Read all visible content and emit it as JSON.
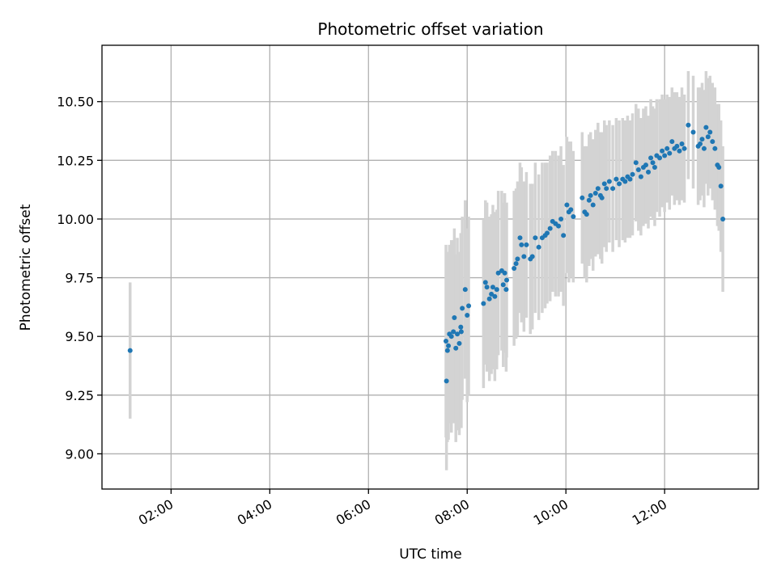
{
  "chart_data": {
    "type": "scatter",
    "title": "Photometric offset variation",
    "xlabel": "UTC time",
    "ylabel": "Photometric offset",
    "x_unit": "hours UTC",
    "xlim": [
      0.6,
      13.9
    ],
    "ylim": [
      8.85,
      10.74
    ],
    "x_ticks": [
      2,
      4,
      6,
      8,
      10,
      12
    ],
    "x_tick_labels": [
      "02:00",
      "04:00",
      "06:00",
      "08:00",
      "10:00",
      "12:00"
    ],
    "y_ticks": [
      9.0,
      9.25,
      9.5,
      9.75,
      10.0,
      10.25,
      10.5
    ],
    "y_tick_labels": [
      "9.00",
      "9.25",
      "9.50",
      "9.75",
      "10.00",
      "10.25",
      "10.50"
    ],
    "grid": true,
    "colors": {
      "point": "#1f77b4",
      "errorbar": "#d3d3d3",
      "grid": "#b0b0b0"
    },
    "series": [
      {
        "points": [
          [
            1.17,
            9.44,
            0.29
          ],
          [
            7.57,
            9.48,
            0.41
          ],
          [
            7.58,
            9.31,
            0.38
          ],
          [
            7.6,
            9.44,
            0.39
          ],
          [
            7.62,
            9.46,
            0.4
          ],
          [
            7.64,
            9.51,
            0.38
          ],
          [
            7.68,
            9.5,
            0.41
          ],
          [
            7.72,
            9.52,
            0.39
          ],
          [
            7.74,
            9.58,
            0.38
          ],
          [
            7.77,
            9.45,
            0.4
          ],
          [
            7.8,
            9.51,
            0.41
          ],
          [
            7.84,
            9.47,
            0.39
          ],
          [
            7.87,
            9.54,
            0.4
          ],
          [
            7.88,
            9.52,
            0.41
          ],
          [
            7.9,
            9.62,
            0.39
          ],
          [
            7.96,
            9.7,
            0.38
          ],
          [
            8.0,
            9.59,
            0.37
          ],
          [
            8.03,
            9.63,
            0.38
          ],
          [
            8.33,
            9.64,
            0.36
          ],
          [
            8.37,
            9.73,
            0.35
          ],
          [
            8.4,
            9.71,
            0.36
          ],
          [
            8.45,
            9.66,
            0.35
          ],
          [
            8.49,
            9.68,
            0.34
          ],
          [
            8.52,
            9.71,
            0.35
          ],
          [
            8.56,
            9.67,
            0.36
          ],
          [
            8.6,
            9.7,
            0.34
          ],
          [
            8.63,
            9.77,
            0.35
          ],
          [
            8.7,
            9.78,
            0.34
          ],
          [
            8.73,
            9.72,
            0.35
          ],
          [
            8.76,
            9.77,
            0.34
          ],
          [
            8.79,
            9.7,
            0.35
          ],
          [
            8.8,
            9.74,
            0.33
          ],
          [
            8.95,
            9.79,
            0.33
          ],
          [
            8.99,
            9.81,
            0.32
          ],
          [
            9.02,
            9.83,
            0.33
          ],
          [
            9.07,
            9.92,
            0.32
          ],
          [
            9.1,
            9.89,
            0.33
          ],
          [
            9.15,
            9.84,
            0.32
          ],
          [
            9.2,
            9.89,
            0.31
          ],
          [
            9.28,
            9.83,
            0.32
          ],
          [
            9.32,
            9.84,
            0.31
          ],
          [
            9.38,
            9.92,
            0.32
          ],
          [
            9.45,
            9.88,
            0.31
          ],
          [
            9.52,
            9.92,
            0.32
          ],
          [
            9.58,
            9.93,
            0.31
          ],
          [
            9.62,
            9.94,
            0.3
          ],
          [
            9.68,
            9.96,
            0.31
          ],
          [
            9.73,
            9.99,
            0.3
          ],
          [
            9.79,
            9.98,
            0.31
          ],
          [
            9.85,
            9.97,
            0.3
          ],
          [
            9.9,
            10.0,
            0.31
          ],
          [
            9.95,
            9.93,
            0.3
          ],
          [
            10.02,
            10.06,
            0.29
          ],
          [
            10.06,
            10.03,
            0.3
          ],
          [
            10.1,
            10.04,
            0.29
          ],
          [
            10.15,
            10.01,
            0.28
          ],
          [
            10.33,
            10.09,
            0.28
          ],
          [
            10.38,
            10.03,
            0.28
          ],
          [
            10.42,
            10.02,
            0.29
          ],
          [
            10.47,
            10.08,
            0.28
          ],
          [
            10.5,
            10.1,
            0.27
          ],
          [
            10.55,
            10.06,
            0.28
          ],
          [
            10.6,
            10.11,
            0.27
          ],
          [
            10.65,
            10.13,
            0.28
          ],
          [
            10.7,
            10.1,
            0.27
          ],
          [
            10.73,
            10.09,
            0.28
          ],
          [
            10.78,
            10.15,
            0.27
          ],
          [
            10.82,
            10.13,
            0.27
          ],
          [
            10.88,
            10.16,
            0.26
          ],
          [
            10.95,
            10.13,
            0.27
          ],
          [
            11.02,
            10.17,
            0.26
          ],
          [
            11.08,
            10.15,
            0.27
          ],
          [
            11.15,
            10.17,
            0.26
          ],
          [
            11.2,
            10.16,
            0.26
          ],
          [
            11.25,
            10.18,
            0.26
          ],
          [
            11.3,
            10.17,
            0.25
          ],
          [
            11.35,
            10.19,
            0.26
          ],
          [
            11.42,
            10.24,
            0.25
          ],
          [
            11.47,
            10.21,
            0.26
          ],
          [
            11.52,
            10.18,
            0.25
          ],
          [
            11.57,
            10.22,
            0.25
          ],
          [
            11.62,
            10.23,
            0.25
          ],
          [
            11.67,
            10.2,
            0.24
          ],
          [
            11.72,
            10.26,
            0.25
          ],
          [
            11.76,
            10.24,
            0.24
          ],
          [
            11.8,
            10.22,
            0.25
          ],
          [
            11.84,
            10.27,
            0.24
          ],
          [
            11.9,
            10.26,
            0.25
          ],
          [
            11.95,
            10.29,
            0.24
          ],
          [
            12.0,
            10.27,
            0.24
          ],
          [
            12.05,
            10.3,
            0.23
          ],
          [
            12.1,
            10.28,
            0.24
          ],
          [
            12.15,
            10.33,
            0.23
          ],
          [
            12.2,
            10.3,
            0.24
          ],
          [
            12.25,
            10.31,
            0.23
          ],
          [
            12.3,
            10.29,
            0.23
          ],
          [
            12.35,
            10.32,
            0.24
          ],
          [
            12.4,
            10.3,
            0.23
          ],
          [
            12.48,
            10.4,
            0.23
          ],
          [
            12.58,
            10.37,
            0.24
          ],
          [
            12.68,
            10.31,
            0.25
          ],
          [
            12.72,
            10.32,
            0.24
          ],
          [
            12.76,
            10.34,
            0.24
          ],
          [
            12.8,
            10.3,
            0.25
          ],
          [
            12.84,
            10.39,
            0.24
          ],
          [
            12.88,
            10.35,
            0.25
          ],
          [
            12.92,
            10.37,
            0.24
          ],
          [
            12.97,
            10.33,
            0.25
          ],
          [
            13.02,
            10.3,
            0.26
          ],
          [
            13.07,
            10.23,
            0.26
          ],
          [
            13.1,
            10.22,
            0.27
          ],
          [
            13.14,
            10.14,
            0.28
          ],
          [
            13.18,
            10.0,
            0.31
          ]
        ]
      }
    ]
  }
}
